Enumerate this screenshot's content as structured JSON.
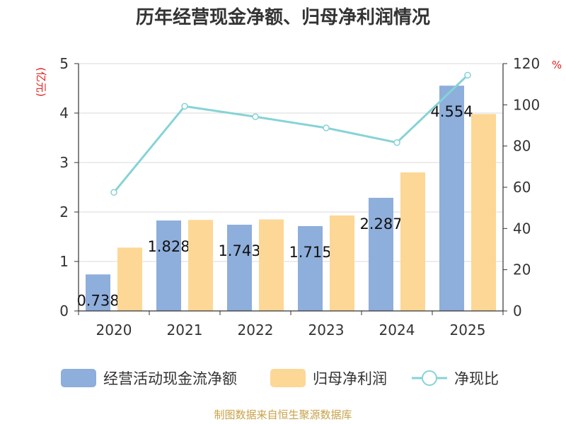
{
  "chart_data": {
    "type": "bar",
    "title": "历年经营现金净额、归母净利润情况",
    "left_unit": "(亿元)",
    "right_unit": "%",
    "categories": [
      "2020",
      "2021",
      "2022",
      "2023",
      "2024",
      "2025"
    ],
    "ylim_left": [
      0,
      5
    ],
    "yticks_left": [
      "0",
      "1",
      "2",
      "3",
      "4",
      "5"
    ],
    "ylim_right": [
      0,
      120
    ],
    "yticks_right": [
      "0",
      "20",
      "40",
      "60",
      "80",
      "100",
      "120"
    ],
    "grid": true,
    "legend_position": "bottom",
    "series": [
      {
        "name": "经营活动现金流净额",
        "kind": "bar",
        "axis": "left",
        "color": "#8eaedb",
        "values": [
          0.738,
          1.828,
          1.743,
          1.715,
          2.287,
          4.554
        ],
        "labels": [
          "0.738",
          "1.828",
          "1.743",
          "1.715",
          "2.287",
          "4.554"
        ]
      },
      {
        "name": "归母净利润",
        "kind": "bar",
        "axis": "left",
        "color": "#fdd795",
        "values": [
          1.28,
          1.84,
          1.85,
          1.93,
          2.8,
          3.98
        ]
      },
      {
        "name": "净现比",
        "kind": "line",
        "axis": "right",
        "color": "#86d3d6",
        "values": [
          57.5,
          99.3,
          94.2,
          88.8,
          81.7,
          114.4
        ]
      }
    ],
    "source": "制图数据来自恒生聚源数据库"
  }
}
